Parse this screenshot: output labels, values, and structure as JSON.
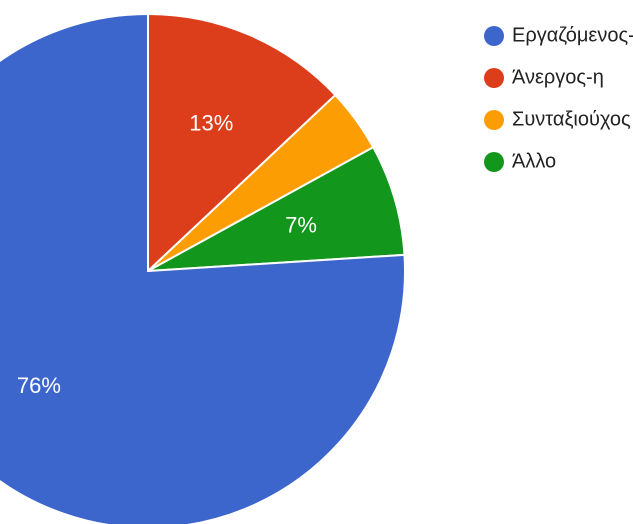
{
  "chart_data": {
    "type": "pie",
    "legend_position": "top-right",
    "slices": [
      {
        "name": "Εργαζόμενος-η",
        "value": 76,
        "label": "76%",
        "color": "#3d66cc"
      },
      {
        "name": "Άνεργος-η",
        "value": 13,
        "label": "13%",
        "color": "#dc3d1a"
      },
      {
        "name": "Συνταξιούχος",
        "value": 4,
        "label": "",
        "color": "#fd9d04"
      },
      {
        "name": "Άλλο",
        "value": 7,
        "label": "7%",
        "color": "#12961b"
      }
    ]
  }
}
